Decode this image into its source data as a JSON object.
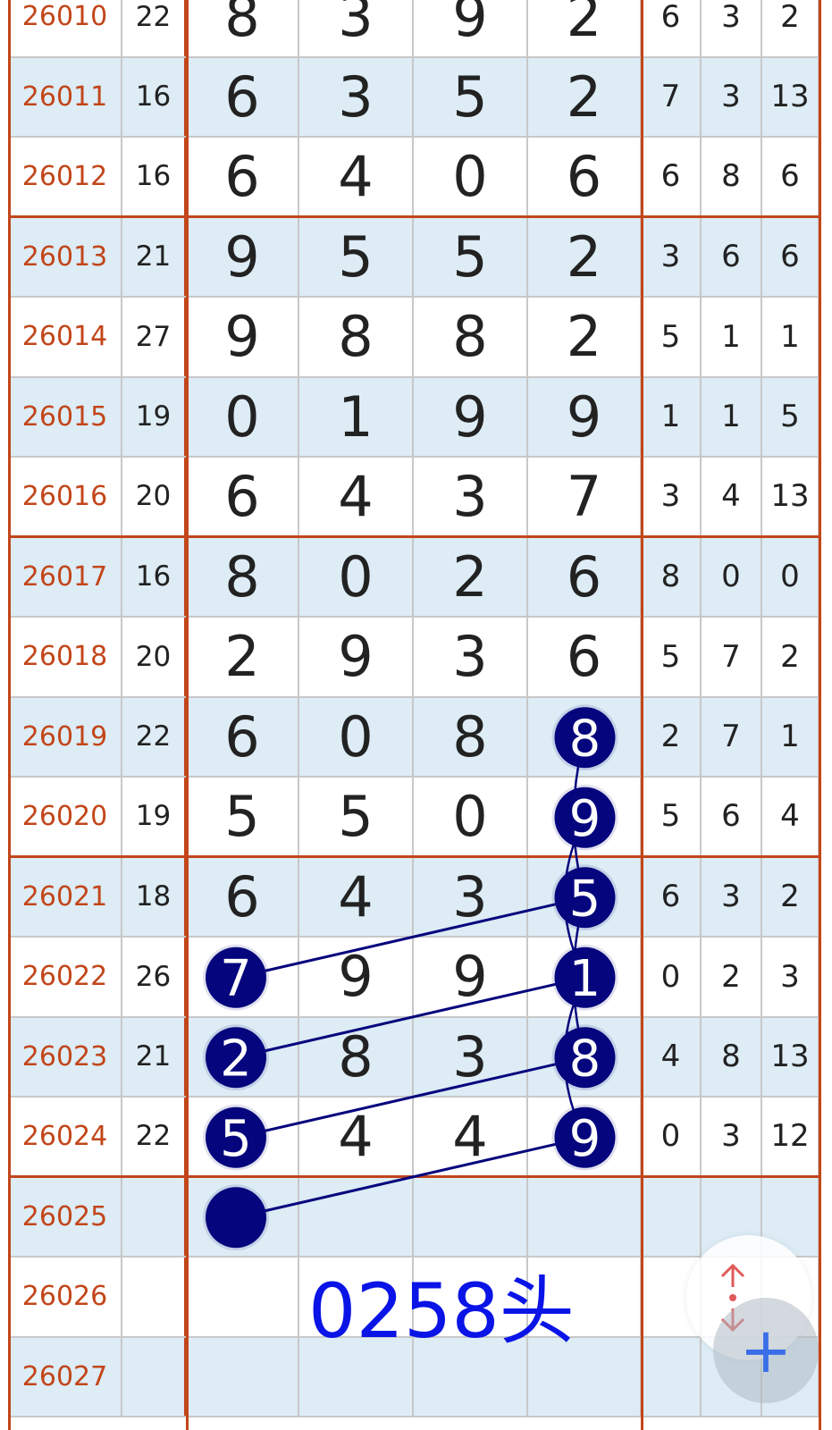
{
  "table": {
    "rows": [
      {
        "issue": "26010",
        "sum": "22",
        "digits": [
          "8",
          "3",
          "9",
          "2"
        ],
        "stats": [
          "6",
          "3",
          "2"
        ]
      },
      {
        "issue": "26011",
        "sum": "16",
        "digits": [
          "6",
          "3",
          "5",
          "2"
        ],
        "stats": [
          "7",
          "3",
          "13"
        ]
      },
      {
        "issue": "26012",
        "sum": "16",
        "digits": [
          "6",
          "4",
          "0",
          "6"
        ],
        "stats": [
          "6",
          "8",
          "6"
        ]
      },
      {
        "issue": "26013",
        "sum": "21",
        "digits": [
          "9",
          "5",
          "5",
          "2"
        ],
        "stats": [
          "3",
          "6",
          "6"
        ]
      },
      {
        "issue": "26014",
        "sum": "27",
        "digits": [
          "9",
          "8",
          "8",
          "2"
        ],
        "stats": [
          "5",
          "1",
          "1"
        ]
      },
      {
        "issue": "26015",
        "sum": "19",
        "digits": [
          "0",
          "1",
          "9",
          "9"
        ],
        "stats": [
          "1",
          "1",
          "5"
        ]
      },
      {
        "issue": "26016",
        "sum": "20",
        "digits": [
          "6",
          "4",
          "3",
          "7"
        ],
        "stats": [
          "3",
          "4",
          "13"
        ]
      },
      {
        "issue": "26017",
        "sum": "16",
        "digits": [
          "8",
          "0",
          "2",
          "6"
        ],
        "stats": [
          "8",
          "0",
          "0"
        ]
      },
      {
        "issue": "26018",
        "sum": "20",
        "digits": [
          "2",
          "9",
          "3",
          "6"
        ],
        "stats": [
          "5",
          "7",
          "2"
        ]
      },
      {
        "issue": "26019",
        "sum": "22",
        "digits": [
          "6",
          "0",
          "8",
          "8"
        ],
        "stats": [
          "2",
          "7",
          "1"
        ]
      },
      {
        "issue": "26020",
        "sum": "19",
        "digits": [
          "5",
          "5",
          "0",
          "9"
        ],
        "stats": [
          "5",
          "6",
          "4"
        ]
      },
      {
        "issue": "26021",
        "sum": "18",
        "digits": [
          "6",
          "4",
          "3",
          "5"
        ],
        "stats": [
          "6",
          "3",
          "2"
        ]
      },
      {
        "issue": "26022",
        "sum": "26",
        "digits": [
          "7",
          "9",
          "9",
          "1"
        ],
        "stats": [
          "0",
          "2",
          "3"
        ]
      },
      {
        "issue": "26023",
        "sum": "21",
        "digits": [
          "2",
          "8",
          "3",
          "8"
        ],
        "stats": [
          "4",
          "8",
          "13"
        ]
      },
      {
        "issue": "26024",
        "sum": "22",
        "digits": [
          "5",
          "4",
          "4",
          "9"
        ],
        "stats": [
          "0",
          "3",
          "12"
        ]
      },
      {
        "issue": "26025",
        "sum": "",
        "digits": [
          "",
          "",
          "",
          ""
        ],
        "stats": [
          "",
          "",
          ""
        ]
      },
      {
        "issue": "26026",
        "sum": "",
        "digits": [
          "",
          "",
          "",
          ""
        ],
        "stats": [
          "",
          "",
          ""
        ]
      },
      {
        "issue": "26027",
        "sum": "",
        "digits": [
          "",
          "",
          "",
          ""
        ],
        "stats": [
          "",
          "",
          ""
        ]
      }
    ],
    "highlighted": [
      {
        "row": 9,
        "col": 3
      },
      {
        "row": 10,
        "col": 3
      },
      {
        "row": 11,
        "col": 3
      },
      {
        "row": 12,
        "col": 3
      },
      {
        "row": 13,
        "col": 3
      },
      {
        "row": 14,
        "col": 3
      },
      {
        "row": 12,
        "col": 0
      },
      {
        "row": 13,
        "col": 0
      },
      {
        "row": 14,
        "col": 0
      },
      {
        "row": 15,
        "col": 0
      }
    ],
    "links": [
      [
        12,
        0,
        11,
        3
      ],
      [
        13,
        0,
        12,
        3
      ],
      [
        14,
        0,
        13,
        3
      ],
      [
        15,
        0,
        14,
        3
      ]
    ],
    "curves": [
      [
        9,
        11
      ],
      [
        10,
        12
      ],
      [
        11,
        13
      ],
      [
        12,
        14
      ]
    ]
  },
  "note": "0258头",
  "colors": {
    "accent": "#c2461a",
    "ball": "#05057d",
    "note": "#0a14e6",
    "odd_row": "#ddecf5"
  },
  "fab": {
    "icon": "plus-icon",
    "scroll_icon": "scroll-up-down-icon"
  }
}
